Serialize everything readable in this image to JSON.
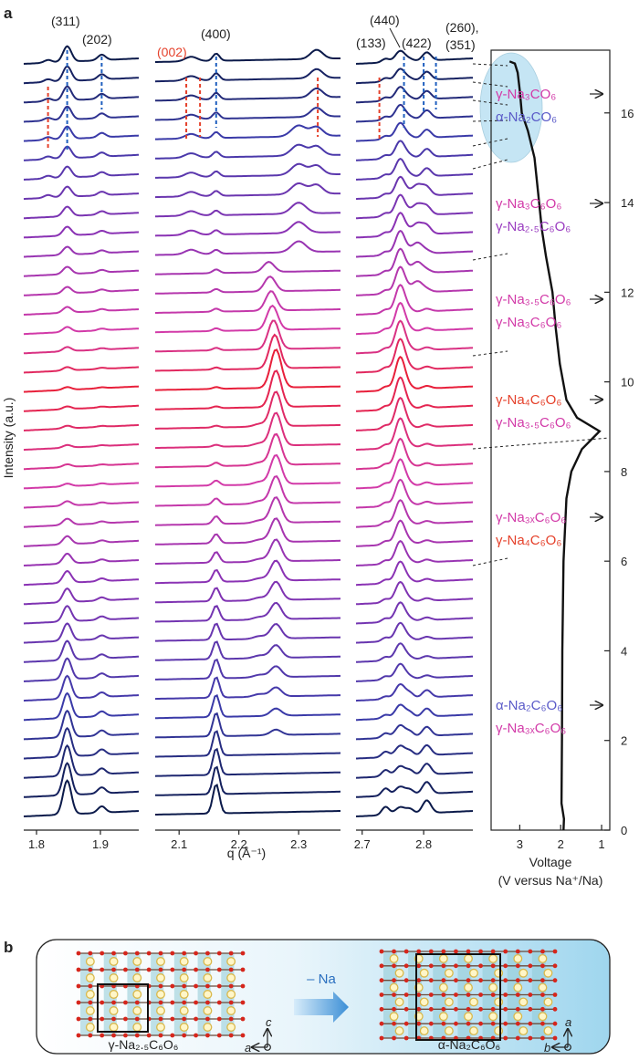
{
  "panel_a_label": "a",
  "panel_b_label": "b",
  "colors": {
    "start": "#0b1a4a",
    "mid_blue": "#3a3aa8",
    "purple": "#8a32b4",
    "magenta": "#d23aa8",
    "red": "#e81f3a",
    "annot_red": "#e5402a",
    "annot_blue": "#1f5fbf",
    "phase_pink": "#d23aa8",
    "phase_blue": "#5a5ac8",
    "phase_red": "#e5402a",
    "highlight": "#bfe3f3"
  },
  "chart_data": [
    {
      "type": "line",
      "subtype": "stacked XRD patterns (waterfall), three q windows",
      "ylabel": "Intensity (a.u.)",
      "xlabel": "q (Å⁻¹)",
      "n_patterns": 40,
      "note": "patterns stacked from bottom (start, discharge) to top (end, charge); color ramp dark blue -> purple -> magenta -> red -> purple -> dark blue",
      "windows": [
        {
          "xlim": [
            1.78,
            1.96
          ],
          "ticks": [
            1.8,
            1.9
          ],
          "tick_labels": [
            "1.8",
            "1.9"
          ]
        },
        {
          "xlim": [
            2.06,
            2.37
          ],
          "ticks": [
            2.1,
            2.2,
            2.3
          ],
          "tick_labels": [
            "2.1",
            "2.2",
            "2.3"
          ]
        },
        {
          "xlim": [
            2.69,
            2.88
          ],
          "ticks": [
            2.7,
            2.8
          ],
          "tick_labels": [
            "2.7",
            "2.8"
          ]
        }
      ],
      "peak_labels": [
        {
          "text": "(311)",
          "q": 1.848,
          "color": "blue"
        },
        {
          "text": "(202)",
          "q": 1.902,
          "color": "blue"
        },
        {
          "text": "(002)",
          "q": 2.112,
          "color": "red"
        },
        {
          "text": "(400)",
          "q": 2.16,
          "color": "blue"
        },
        {
          "text": "(133)",
          "q": 2.728,
          "color": "red"
        },
        {
          "text": "(440)",
          "q": 2.768,
          "color": "blue"
        },
        {
          "text": "(422)",
          "q": 2.8,
          "color": "blue"
        },
        {
          "text": "(260),",
          "q": 2.82,
          "color": "blue"
        },
        {
          "text": "(351)",
          "q": 2.82,
          "color": "blue"
        }
      ]
    },
    {
      "type": "line",
      "subtype": "voltage profile",
      "xlabel": "Voltage",
      "xlabel2": "(V versus Na⁺/Na)",
      "xlim": [
        3.7,
        0.8
      ],
      "xticks": [
        3,
        2,
        1
      ],
      "xtick_labels": [
        "3",
        "2",
        "1"
      ],
      "ylim": [
        0,
        17.4
      ],
      "yticks": [
        0,
        2,
        4,
        6,
        8,
        10,
        12,
        14,
        16
      ],
      "ytick_labels": [
        "0",
        "2",
        "4",
        "6",
        "8",
        "10",
        "12",
        "14",
        "16"
      ],
      "series": [
        {
          "name": "voltage",
          "points": [
            [
              1.93,
              0
            ],
            [
              1.92,
              0.25
            ],
            [
              1.98,
              0.6
            ],
            [
              1.97,
              2.0
            ],
            [
              1.96,
              4.0
            ],
            [
              1.93,
              6.0
            ],
            [
              1.86,
              7.4
            ],
            [
              1.74,
              8.0
            ],
            [
              1.48,
              8.5
            ],
            [
              1.05,
              8.9
            ],
            [
              1.6,
              9.2
            ],
            [
              1.86,
              9.6
            ],
            [
              2.02,
              10.4
            ],
            [
              2.12,
              11.2
            ],
            [
              2.2,
              12.0
            ],
            [
              2.36,
              12.8
            ],
            [
              2.46,
              13.4
            ],
            [
              2.55,
              14.2
            ],
            [
              2.64,
              15.0
            ],
            [
              2.8,
              15.6
            ],
            [
              2.95,
              16.0
            ],
            [
              3.0,
              16.5
            ],
            [
              3.05,
              16.9
            ],
            [
              3.12,
              17.1
            ],
            [
              3.25,
              17.15
            ]
          ]
        }
      ]
    }
  ],
  "phases": [
    {
      "line1": "γ-Na₃CO₆",
      "line2": "α-Na₂CO₆",
      "color1": "pink",
      "color2": "blue"
    },
    {
      "line1": "γ-Na₃C₆O₆",
      "line2": "γ-Na₂.₅C₆O₆",
      "color1": "pink",
      "color2": "purple"
    },
    {
      "line1": "γ-Na₃.₅C₆O₆",
      "line2": "γ-Na₃C₆O₆",
      "color1": "pink",
      "color2": "pink"
    },
    {
      "line1": "γ-Na₄C₆O₆",
      "line2": "γ-Na₃.₅C₆O₆",
      "color1": "red",
      "color2": "pink"
    },
    {
      "line1": "γ-Na₃ₓC₆O₆",
      "line2": "γ-Na₄C₆O₆",
      "color1": "pink",
      "color2": "red"
    },
    {
      "line1": "α-Na₂C₆O₆",
      "line2": "γ-Na₃ₓC₆O₆",
      "color1": "blue",
      "color2": "pink"
    }
  ],
  "panel_b": {
    "left_caption": "γ-Na₂.₅C₆O₆",
    "right_caption": "α-Na₂C₆O₆",
    "arrow_label": "– Na",
    "left_axes": {
      "horizontal": "a",
      "vertical": "c"
    },
    "right_axes": {
      "horizontal": "b",
      "vertical": "a"
    }
  }
}
